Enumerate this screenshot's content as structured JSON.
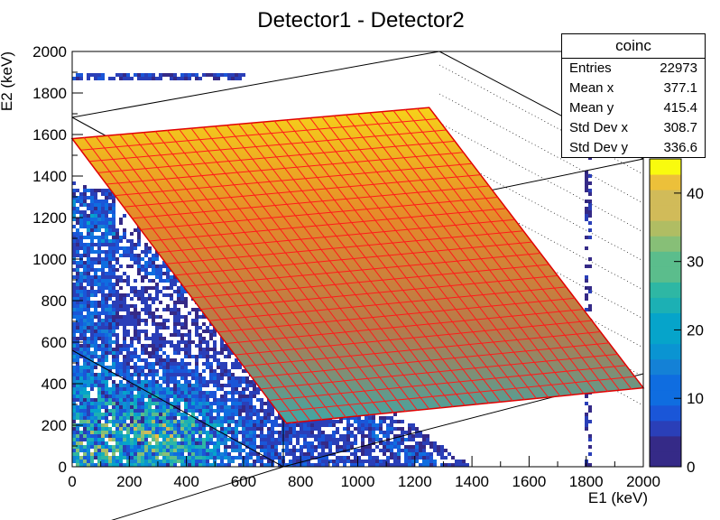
{
  "chart_data": {
    "type": "heatmap",
    "title": "Detector1 - Detector2",
    "xlabel": "E1 (keV)",
    "ylabel": "E2 (keV)",
    "xlim": [
      0,
      2000
    ],
    "ylim": [
      0,
      2000
    ],
    "x_ticks": [
      "0",
      "200",
      "400",
      "600",
      "800",
      "1000",
      "1200",
      "1400",
      "1600",
      "1800",
      "2000"
    ],
    "y_ticks": [
      "0",
      "200",
      "400",
      "600",
      "800",
      "1000",
      "1200",
      "1400",
      "1600",
      "1800",
      "2000"
    ],
    "colorbar": {
      "range": [
        0,
        45
      ],
      "ticks": [
        "0",
        "10",
        "20",
        "30",
        "40"
      ]
    },
    "overlay_plane_corners_keV": [
      [
        0,
        1580
      ],
      [
        1250,
        1730
      ],
      [
        2000,
        380
      ],
      [
        750,
        210
      ]
    ],
    "stats": {
      "title": "coinc",
      "rows": [
        {
          "label": "Entries",
          "value": "22973"
        },
        {
          "label": "Mean x",
          "value": "377.1"
        },
        {
          "label": "Mean y",
          "value": "415.4"
        },
        {
          "label": "Std Dev x",
          "value": "308.7"
        },
        {
          "label": "Std Dev y",
          "value": "336.6"
        }
      ]
    }
  },
  "colors": {
    "background": "#ffffff",
    "frame": "#000000",
    "plane_top": "#f4d31e",
    "plane_mid": "#c2702f",
    "plane_bottom": "#3aa6a0",
    "plane_grid": "#ff1a1a"
  }
}
